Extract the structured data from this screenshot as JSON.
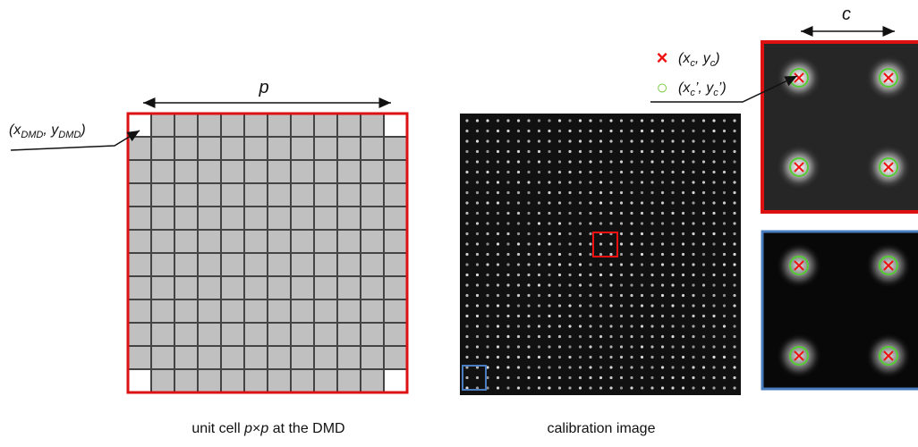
{
  "diagram": {
    "pitch_label": "p",
    "dmd_coord": [
      "(x",
      "DMD",
      ", y",
      "DMD",
      ")"
    ],
    "zoom_label": "c",
    "legend": [
      {
        "marker": "×",
        "parts": [
          "(x",
          "c",
          ", y",
          "c",
          ")"
        ]
      },
      {
        "marker": "○",
        "parts": [
          "(x",
          "c",
          "’, y",
          "c",
          "’)"
        ]
      }
    ],
    "caption_left": [
      "unit cell ",
      "p",
      "×",
      "p",
      " at the DMD"
    ],
    "caption_right": "calibration image"
  }
}
